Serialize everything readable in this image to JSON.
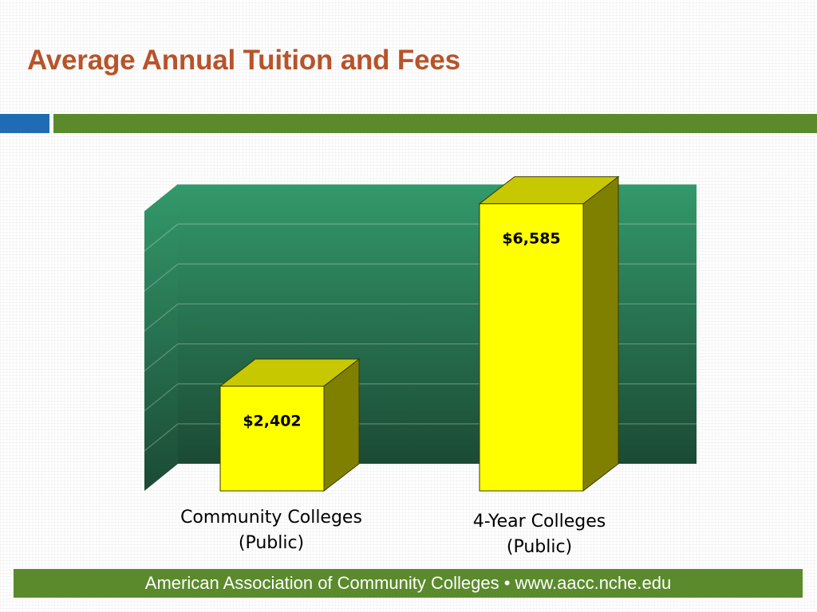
{
  "slide": {
    "title": "Average Annual Tuition and Fees",
    "footer": "American Association of Community Colleges • www.aacc.nche.edu"
  },
  "colors": {
    "title": "#b8532a",
    "accent_blue": "#1f6cb4",
    "accent_green": "#5a8a2c",
    "bar_front": "#ffff00",
    "bar_top": "#c8c800",
    "bar_side": "#808000",
    "backwall_top": "#33996b",
    "backwall_bottom": "#1b4a34"
  },
  "chart_data": {
    "type": "bar",
    "style": "3d",
    "categories": [
      [
        "Community Colleges",
        "(Public)"
      ],
      [
        "4-Year Colleges",
        "(Public)"
      ]
    ],
    "values": [
      2402,
      6585
    ],
    "data_labels": [
      "$2,402",
      "$6,585"
    ],
    "ylim": [
      0,
      7000
    ],
    "grid": true,
    "legend": "none"
  }
}
